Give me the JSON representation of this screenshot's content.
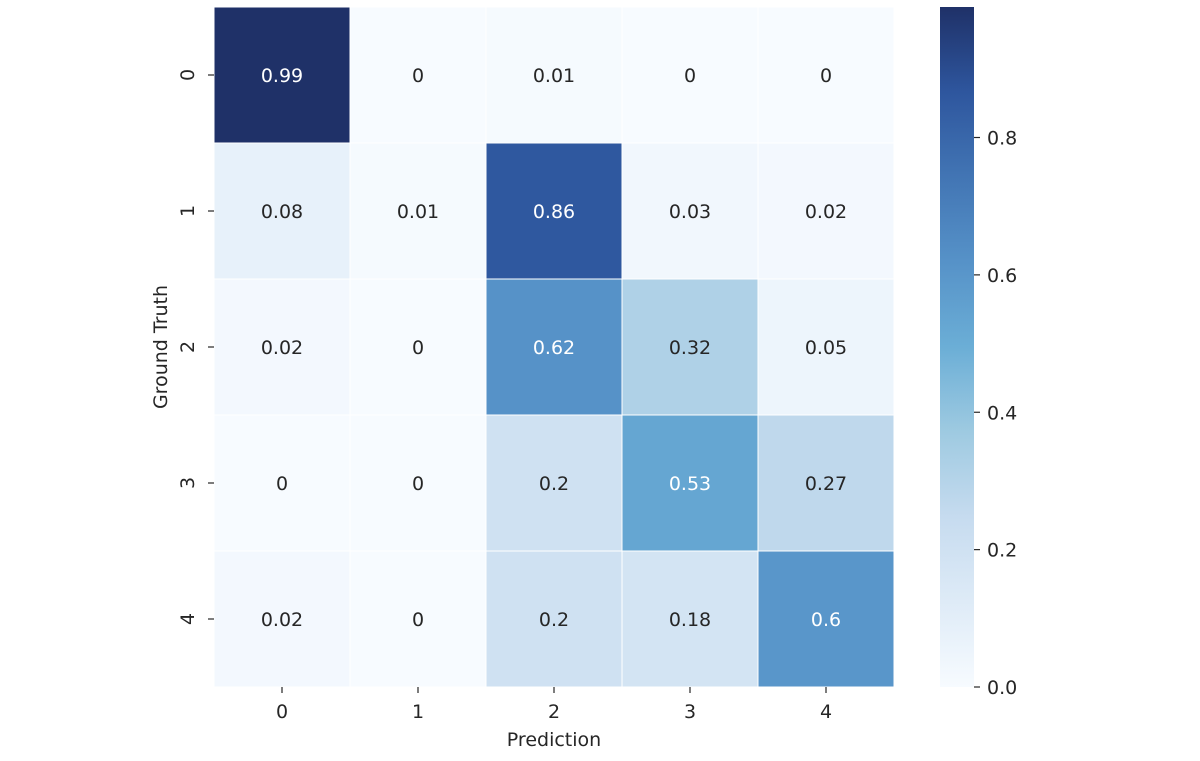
{
  "chart_data": {
    "type": "heatmap",
    "title": "",
    "xlabel": "Prediction",
    "ylabel": "Ground Truth",
    "x_categories": [
      "0",
      "1",
      "2",
      "3",
      "4"
    ],
    "y_categories": [
      "0",
      "1",
      "2",
      "3",
      "4"
    ],
    "values": [
      [
        0.99,
        0,
        0.01,
        0,
        0
      ],
      [
        0.08,
        0.01,
        0.86,
        0.03,
        0.02
      ],
      [
        0.02,
        0,
        0.62,
        0.32,
        0.05
      ],
      [
        0,
        0,
        0.2,
        0.53,
        0.27
      ],
      [
        0.02,
        0,
        0.2,
        0.18,
        0.6
      ]
    ],
    "annotations": [
      [
        "0.99",
        "0",
        "0.01",
        "0",
        "0"
      ],
      [
        "0.08",
        "0.01",
        "0.86",
        "0.03",
        "0.02"
      ],
      [
        "0.02",
        "0",
        "0.62",
        "0.32",
        "0.05"
      ],
      [
        "0",
        "0",
        "0.2",
        "0.53",
        "0.27"
      ],
      [
        "0.02",
        "0",
        "0.2",
        "0.18",
        "0.6"
      ]
    ],
    "colorbar": {
      "vmin": 0.0,
      "vmax": 0.99,
      "ticks": [
        0.0,
        0.2,
        0.4,
        0.6,
        0.8
      ],
      "tick_labels": [
        "0.0",
        "0.2",
        "0.4",
        "0.6",
        "0.8"
      ],
      "colormap": "Blues",
      "low_color": "#f7fbff",
      "high_color": "#1f3168"
    },
    "text_color_dark": "#262626",
    "text_color_light": "#ffffff",
    "cell_border_color": "#ffffff"
  }
}
